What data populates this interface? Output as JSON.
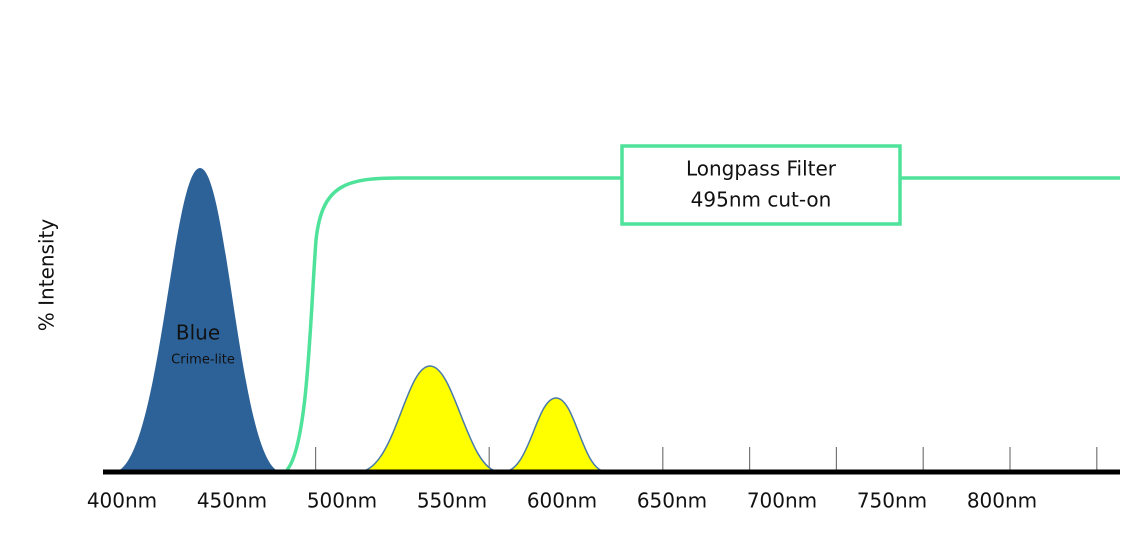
{
  "axis_label": "% Intensity",
  "x_labels": [
    "400nm",
    "450nm",
    "500nm",
    "550nm",
    "600nm",
    "650nm",
    "700nm",
    "750nm",
    "800nm"
  ],
  "peak": {
    "label": "Blue",
    "sublabel": "Crime-lite"
  },
  "filter": {
    "line1": "Longpass Filter",
    "line2": "495nm cut-on"
  }
}
